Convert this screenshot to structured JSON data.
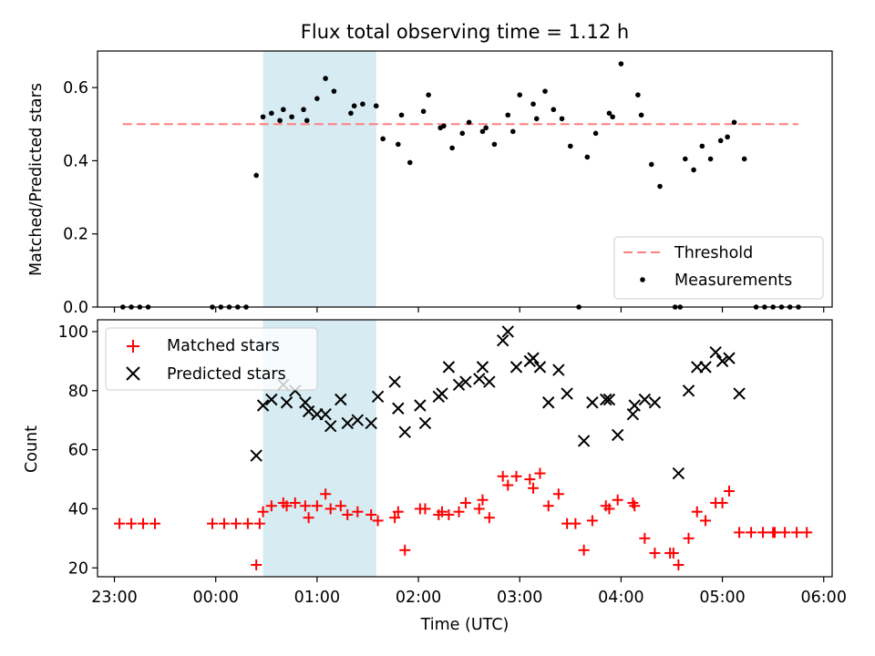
{
  "chart_data": [
    {
      "type": "scatter",
      "title": "Flux total observing time = 1.12 h",
      "xlabel": "",
      "ylabel": "Matched/Predicted stars",
      "xlim": [
        "22:50",
        "06:05"
      ],
      "ylim": [
        0,
        0.7
      ],
      "yticks": [
        "0.0",
        "0.2",
        "0.4",
        "0.6"
      ],
      "shaded_span": {
        "start": "00:28",
        "end": "01:35",
        "color": "#add8e6"
      },
      "legend_position": "lower-right",
      "series": [
        {
          "name": "Threshold",
          "style": "dashed-line",
          "color": "#ff7f7f",
          "points": [
            [
              "23:05",
              0.5
            ],
            [
              "05:45",
              0.5
            ]
          ]
        },
        {
          "name": "Measurements",
          "style": "dot",
          "color": "#000000",
          "points": [
            [
              "23:05",
              0
            ],
            [
              "23:10",
              0
            ],
            [
              "23:15",
              0
            ],
            [
              "23:20",
              0
            ],
            [
              "23:58",
              0
            ],
            [
              "00:03",
              0
            ],
            [
              "00:08",
              0
            ],
            [
              "00:13",
              0
            ],
            [
              "00:18",
              0
            ],
            [
              "00:24",
              0.36
            ],
            [
              "00:28",
              0.52
            ],
            [
              "00:33",
              0.53
            ],
            [
              "00:38",
              0.51
            ],
            [
              "00:40",
              0.54
            ],
            [
              "00:45",
              0.52
            ],
            [
              "00:52",
              0.54
            ],
            [
              "00:54",
              0.51
            ],
            [
              "01:00",
              0.57
            ],
            [
              "01:05",
              0.625
            ],
            [
              "01:10",
              0.59
            ],
            [
              "01:20",
              0.53
            ],
            [
              "01:22",
              0.55
            ],
            [
              "01:27",
              0.555
            ],
            [
              "01:35",
              0.55
            ],
            [
              "01:39",
              0.46
            ],
            [
              "01:48",
              0.445
            ],
            [
              "01:50",
              0.525
            ],
            [
              "01:55",
              0.395
            ],
            [
              "02:03",
              0.535
            ],
            [
              "02:06",
              0.58
            ],
            [
              "02:13",
              0.49
            ],
            [
              "02:15",
              0.495
            ],
            [
              "02:20",
              0.435
            ],
            [
              "02:26",
              0.475
            ],
            [
              "02:30",
              0.505
            ],
            [
              "02:38",
              0.48
            ],
            [
              "02:40",
              0.49
            ],
            [
              "02:45",
              0.445
            ],
            [
              "02:53",
              0.525
            ],
            [
              "02:56",
              0.48
            ],
            [
              "03:00",
              0.58
            ],
            [
              "03:08",
              0.555
            ],
            [
              "03:10",
              0.515
            ],
            [
              "03:15",
              0.59
            ],
            [
              "03:20",
              0.54
            ],
            [
              "03:25",
              0.515
            ],
            [
              "03:30",
              0.44
            ],
            [
              "03:35",
              0
            ],
            [
              "03:40",
              0.41
            ],
            [
              "03:45",
              0.475
            ],
            [
              "03:53",
              0.53
            ],
            [
              "03:55",
              0.52
            ],
            [
              "04:00",
              0.665
            ],
            [
              "04:10",
              0.58
            ],
            [
              "04:12",
              0.525
            ],
            [
              "04:18",
              0.39
            ],
            [
              "04:23",
              0.33
            ],
            [
              "04:32",
              0
            ],
            [
              "04:35",
              0
            ],
            [
              "04:38",
              0.405
            ],
            [
              "04:43",
              0.375
            ],
            [
              "04:48",
              0.44
            ],
            [
              "04:53",
              0.405
            ],
            [
              "04:59",
              0.455
            ],
            [
              "05:03",
              0.465
            ],
            [
              "05:07",
              0.505
            ],
            [
              "05:13",
              0.405
            ],
            [
              "05:20",
              0
            ],
            [
              "05:25",
              0
            ],
            [
              "05:30",
              0
            ],
            [
              "05:35",
              0
            ],
            [
              "05:40",
              0
            ],
            [
              "05:45",
              0
            ]
          ]
        }
      ]
    },
    {
      "type": "scatter",
      "title": "",
      "xlabel": "Time (UTC)",
      "ylabel": "Count",
      "xlim": [
        "22:50",
        "06:05"
      ],
      "ylim": [
        17,
        104
      ],
      "yticks": [
        "20",
        "40",
        "60",
        "80",
        "100"
      ],
      "xticks": [
        "23:00",
        "00:00",
        "01:00",
        "02:00",
        "03:00",
        "04:00",
        "05:00",
        "06:00"
      ],
      "shaded_span": {
        "start": "00:28",
        "end": "01:35",
        "color": "#add8e6"
      },
      "legend_position": "upper-left",
      "series": [
        {
          "name": "Matched stars",
          "marker": "plus",
          "color": "#ff0000",
          "points": [
            [
              "23:03",
              35
            ],
            [
              "23:10",
              35
            ],
            [
              "23:17",
              35
            ],
            [
              "23:24",
              35
            ],
            [
              "23:58",
              35
            ],
            [
              "00:05",
              35
            ],
            [
              "00:12",
              35
            ],
            [
              "00:19",
              35
            ],
            [
              "00:26",
              35
            ],
            [
              "00:24",
              21
            ],
            [
              "00:28",
              39
            ],
            [
              "00:33",
              41
            ],
            [
              "00:40",
              42
            ],
            [
              "00:42",
              41
            ],
            [
              "00:47",
              42
            ],
            [
              "00:53",
              41
            ],
            [
              "00:55",
              37
            ],
            [
              "01:00",
              41
            ],
            [
              "01:05",
              45
            ],
            [
              "01:08",
              40
            ],
            [
              "01:14",
              41
            ],
            [
              "01:18",
              38
            ],
            [
              "01:24",
              39
            ],
            [
              "01:32",
              38
            ],
            [
              "01:36",
              36
            ],
            [
              "01:46",
              37
            ],
            [
              "01:48",
              39
            ],
            [
              "01:52",
              26
            ],
            [
              "02:01",
              40
            ],
            [
              "02:04",
              40
            ],
            [
              "02:12",
              38
            ],
            [
              "02:14",
              39
            ],
            [
              "02:18",
              38
            ],
            [
              "02:24",
              39
            ],
            [
              "02:28",
              42
            ],
            [
              "02:36",
              40
            ],
            [
              "02:38",
              43
            ],
            [
              "02:42",
              37
            ],
            [
              "02:50",
              51
            ],
            [
              "02:53",
              48
            ],
            [
              "02:58",
              51
            ],
            [
              "03:06",
              50
            ],
            [
              "03:08",
              47
            ],
            [
              "03:12",
              52
            ],
            [
              "03:17",
              41
            ],
            [
              "03:23",
              45
            ],
            [
              "03:28",
              35
            ],
            [
              "03:33",
              35
            ],
            [
              "03:38",
              26
            ],
            [
              "03:43",
              36
            ],
            [
              "03:51",
              41
            ],
            [
              "03:53",
              40
            ],
            [
              "03:58",
              43
            ],
            [
              "04:07",
              42
            ],
            [
              "04:08",
              41
            ],
            [
              "04:14",
              30
            ],
            [
              "04:20",
              25
            ],
            [
              "04:29",
              25
            ],
            [
              "04:31",
              25
            ],
            [
              "04:34",
              21
            ],
            [
              "04:40",
              30
            ],
            [
              "04:45",
              39
            ],
            [
              "04:50",
              36
            ],
            [
              "04:56",
              42
            ],
            [
              "05:00",
              42
            ],
            [
              "05:04",
              46
            ],
            [
              "05:10",
              32
            ],
            [
              "05:17",
              32
            ],
            [
              "05:24",
              32
            ],
            [
              "05:30",
              32
            ],
            [
              "05:31",
              32
            ],
            [
              "05:37",
              32
            ],
            [
              "05:44",
              32
            ],
            [
              "05:50",
              32
            ]
          ]
        },
        {
          "name": "Predicted stars",
          "marker": "x",
          "color": "#000000",
          "points": [
            [
              "00:24",
              58
            ],
            [
              "00:28",
              75
            ],
            [
              "00:33",
              77
            ],
            [
              "00:40",
              82
            ],
            [
              "00:42",
              76
            ],
            [
              "00:47",
              80
            ],
            [
              "00:53",
              76
            ],
            [
              "00:55",
              73
            ],
            [
              "01:00",
              72
            ],
            [
              "01:05",
              72
            ],
            [
              "01:08",
              68
            ],
            [
              "01:14",
              77
            ],
            [
              "01:18",
              69
            ],
            [
              "01:24",
              70
            ],
            [
              "01:32",
              69
            ],
            [
              "01:36",
              78
            ],
            [
              "01:46",
              83
            ],
            [
              "01:48",
              74
            ],
            [
              "01:52",
              66
            ],
            [
              "02:01",
              75
            ],
            [
              "02:04",
              69
            ],
            [
              "02:12",
              78
            ],
            [
              "02:14",
              79
            ],
            [
              "02:18",
              88
            ],
            [
              "02:24",
              82
            ],
            [
              "02:28",
              83
            ],
            [
              "02:36",
              84
            ],
            [
              "02:38",
              88
            ],
            [
              "02:42",
              83
            ],
            [
              "02:50",
              97
            ],
            [
              "02:53",
              100
            ],
            [
              "02:58",
              88
            ],
            [
              "03:06",
              90
            ],
            [
              "03:08",
              91
            ],
            [
              "03:12",
              88
            ],
            [
              "03:17",
              76
            ],
            [
              "03:23",
              87
            ],
            [
              "03:28",
              79
            ],
            [
              "03:38",
              63
            ],
            [
              "03:43",
              76
            ],
            [
              "03:51",
              77
            ],
            [
              "03:53",
              77
            ],
            [
              "03:58",
              65
            ],
            [
              "04:07",
              72
            ],
            [
              "04:08",
              75
            ],
            [
              "04:14",
              77
            ],
            [
              "04:20",
              76
            ],
            [
              "04:34",
              52
            ],
            [
              "04:40",
              80
            ],
            [
              "04:45",
              88
            ],
            [
              "04:50",
              88
            ],
            [
              "04:56",
              93
            ],
            [
              "05:00",
              90
            ],
            [
              "05:04",
              91
            ],
            [
              "05:10",
              79
            ]
          ]
        }
      ]
    }
  ]
}
